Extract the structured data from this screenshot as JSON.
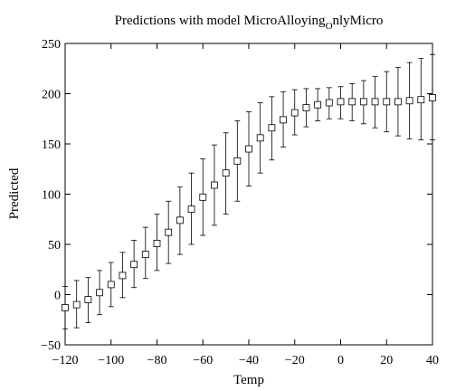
{
  "chart_data": {
    "type": "scatter",
    "title_main": "Predictions with model MicroAlloying",
    "title_subscript": "O",
    "title_tail": "nlyMicro",
    "xlabel": "Temp",
    "ylabel": "Predicted",
    "xlim": [
      -120,
      40
    ],
    "ylim": [
      -50,
      250
    ],
    "xticks": [
      -120,
      -100,
      -80,
      -60,
      -40,
      -20,
      0,
      20,
      40
    ],
    "yticks": [
      -50,
      0,
      50,
      100,
      150,
      200,
      250
    ],
    "xtick_labels": [
      "−120",
      "−100",
      "−80",
      "−60",
      "−40",
      "−20",
      "0",
      "20",
      "40"
    ],
    "ytick_labels": [
      "−50",
      "0",
      "50",
      "100",
      "150",
      "200",
      "250"
    ],
    "grid": false,
    "marker": "open-square",
    "error_bars": true,
    "series": [
      {
        "x": [
          -120,
          -115,
          -110,
          -105,
          -100,
          -95,
          -90,
          -85,
          -80,
          -75,
          -70,
          -65,
          -60,
          -55,
          -50,
          -45,
          -40,
          -35,
          -30,
          -25,
          -20,
          -15,
          -10,
          -5,
          0,
          5,
          10,
          15,
          20,
          25,
          30,
          35,
          40
        ],
        "y": [
          -13,
          -10,
          -5,
          2,
          10,
          19,
          30,
          40,
          51,
          62,
          74,
          85,
          97,
          109,
          121,
          133,
          145,
          156,
          166,
          174,
          181,
          186,
          189,
          191,
          192,
          192,
          192,
          192,
          192,
          192,
          193,
          194,
          196
        ],
        "lower": [
          -34,
          -33,
          -28,
          -20,
          -12,
          -3,
          7,
          16,
          24,
          31,
          40,
          50,
          59,
          69,
          80,
          93,
          108,
          121,
          134,
          147,
          159,
          167,
          173,
          175,
          175,
          173,
          170,
          166,
          162,
          158,
          155,
          154,
          154
        ],
        "upper": [
          8,
          14,
          17,
          24,
          32,
          42,
          54,
          67,
          80,
          93,
          107,
          121,
          135,
          149,
          161,
          173,
          182,
          191,
          197,
          202,
          204,
          205,
          205,
          206,
          207,
          210,
          213,
          217,
          222,
          226,
          231,
          235,
          239
        ]
      }
    ]
  }
}
